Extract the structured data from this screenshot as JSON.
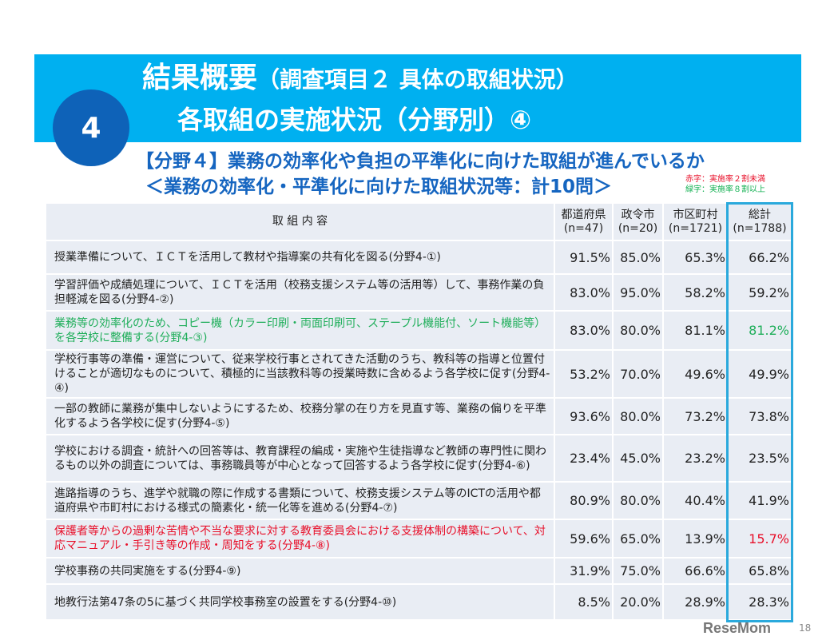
{
  "title": {
    "main": "結果概要",
    "paren": "（調査項目２ 具体の取組状況）",
    "line2": "各取組の実施状況（分野別）④",
    "badge": "4"
  },
  "subtitle": "【分野４】業務の効率化や負担の平準化に向けた取組が進んでいるか",
  "subtitle2": "＜業務の効率化・平準化に向けた取組状況等：計10問＞",
  "legend": {
    "red": "赤字：実施率２割未満",
    "green": "緑字：実施率８割以上",
    "red_color": "#e8102a",
    "green_color": "#1fae5a"
  },
  "table": {
    "headers": [
      "取 組 内 容",
      "都道府県\n(n=47)",
      "政令市\n(n=20)",
      "市区町村\n(n=1721)",
      "総計\n(n=1788)"
    ],
    "rows": [
      {
        "desc": "授業準備について、ＩＣＴを活用して教材や指導案の共有化を図る(分野4-①)",
        "v": [
          "91.5%",
          "85.0%",
          "65.3%",
          "66.2%"
        ],
        "style": ""
      },
      {
        "desc": "学習評価や成績処理について、ＩＣＴを活用（校務支援システム等の活用等）して、事務作業の負担軽減を図る(分野4-②)",
        "v": [
          "83.0%",
          "95.0%",
          "58.2%",
          "59.2%"
        ],
        "style": ""
      },
      {
        "desc": "業務等の効率化のため、コピー機（カラー印刷・両面印刷可、ステープル機能付、ソート機能等）を各学校に整備する(分野4-③)",
        "v": [
          "83.0%",
          "80.0%",
          "81.1%",
          "81.2%"
        ],
        "style": "green"
      },
      {
        "desc": "学校行事等の準備・運営について、従来学校行事とされてきた活動のうち、教科等の指導と位置付けることが適切なものについて、積極的に当該教科等の授業時数に含めるよう各学校に促す(分野4-④)",
        "v": [
          "53.2%",
          "70.0%",
          "49.6%",
          "49.9%"
        ],
        "style": ""
      },
      {
        "desc": "一部の教師に業務が集中しないようにするため、校務分掌の在り方を見直す等、業務の偏りを平準化するよう各学校に促す(分野4-⑤)",
        "v": [
          "93.6%",
          "80.0%",
          "73.2%",
          "73.8%"
        ],
        "style": ""
      },
      {
        "desc": "学校における調査・統計への回答等は、教育課程の編成・実施や生徒指導など教師の専門性に関わるもの以外の調査については、事務職員等が中心となって回答するよう各学校に促す(分野4-⑥)",
        "v": [
          "23.4%",
          "45.0%",
          "23.2%",
          "23.5%"
        ],
        "style": ""
      },
      {
        "desc": "進路指導のうち、進学や就職の際に作成する書類について、校務支援システム等のICTの活用や都道府県や市町村における様式の簡素化・統一化等を進める(分野4-⑦)",
        "v": [
          "80.9%",
          "80.0%",
          "40.4%",
          "41.9%"
        ],
        "style": ""
      },
      {
        "desc": "保護者等からの過剰な苦情や不当な要求に対する教育委員会における支援体制の構築について、対応マニュアル・手引き等の作成・周知をする(分野4-⑧)",
        "v": [
          "59.6%",
          "65.0%",
          "13.9%",
          "15.7%"
        ],
        "style": "red"
      },
      {
        "desc": "学校事務の共同実施をする(分野4-⑨)",
        "v": [
          "31.9%",
          "75.0%",
          "66.6%",
          "65.8%"
        ],
        "style": ""
      },
      {
        "desc": "地教行法第47条の5に基づく共同学校事務室の設置をする(分野4-⑩)",
        "v": [
          "8.5%",
          "20.0%",
          "28.9%",
          "28.3%"
        ],
        "style": ""
      }
    ]
  },
  "page_number": "18",
  "logo": "ReseMom"
}
